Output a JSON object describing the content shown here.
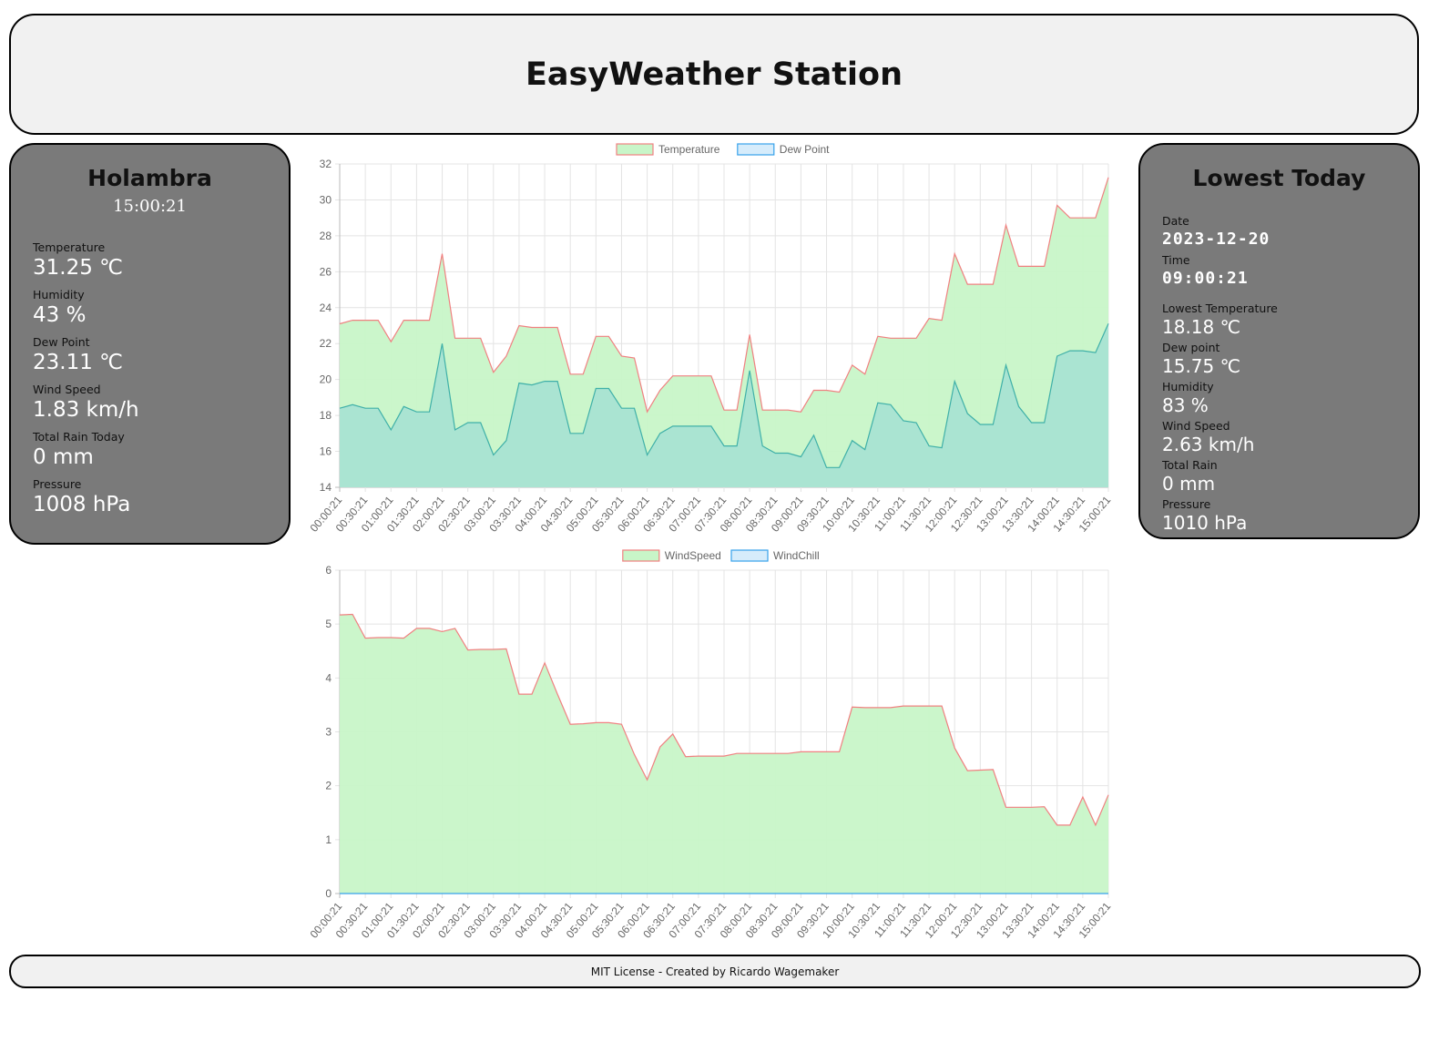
{
  "header": {
    "title": "EasyWeather Station"
  },
  "current": {
    "station": "Holambra",
    "time": "15:00:21",
    "items": [
      {
        "label": "Temperature",
        "value": "31.25 ℃"
      },
      {
        "label": "Humidity",
        "value": "43 %"
      },
      {
        "label": "Dew Point",
        "value": "23.11 ℃"
      },
      {
        "label": "Wind Speed",
        "value": "1.83 km/h"
      },
      {
        "label": "Total Rain Today",
        "value": "0 mm"
      },
      {
        "label": "Pressure",
        "value": "1008 hPa"
      }
    ]
  },
  "lowest": {
    "title": "Lowest Today",
    "date_label": "Date",
    "date": "2023-12-20",
    "time_label": "Time",
    "time": "09:00:21",
    "items": [
      {
        "label": "Lowest Temperature",
        "value": "18.18 ℃"
      },
      {
        "label": "Dew point",
        "value": "15.75 ℃"
      },
      {
        "label": "Humidity",
        "value": "83 %"
      },
      {
        "label": "Wind Speed",
        "value": "2.63 km/h"
      },
      {
        "label": "Total Rain",
        "value": "0 mm"
      },
      {
        "label": "Pressure",
        "value": "1010 hPa"
      }
    ]
  },
  "footer": {
    "text": "MIT License - Created by Ricardo Wagemaker"
  },
  "colors": {
    "temp_line": "#f08080",
    "temp_fill": "#c8f5c8",
    "dew_line": "#36a2eb",
    "dew_fill": "#d0e8f8",
    "legend_green_fill": "#c8f5c8",
    "legend_green_border": "#f08080",
    "legend_blue_fill": "#d6ecfb",
    "legend_blue_border": "#36a2eb"
  },
  "chart_data": [
    {
      "type": "area",
      "x": [
        "00:00:21",
        "00:15:21",
        "00:30:21",
        "00:45:21",
        "01:00:21",
        "01:15:21",
        "01:30:21",
        "01:45:21",
        "02:00:21",
        "02:15:21",
        "02:30:21",
        "02:45:21",
        "03:00:21",
        "03:15:21",
        "03:30:21",
        "03:45:21",
        "04:00:21",
        "04:15:21",
        "04:30:21",
        "04:45:21",
        "05:00:21",
        "05:15:21",
        "05:30:21",
        "05:45:21",
        "06:00:21",
        "06:15:21",
        "06:30:21",
        "06:45:21",
        "07:00:21",
        "07:15:21",
        "07:30:21",
        "07:45:21",
        "08:00:21",
        "08:15:21",
        "08:30:21",
        "08:45:21",
        "09:00:21",
        "09:15:21",
        "09:30:21",
        "09:45:21",
        "10:00:21",
        "10:15:21",
        "10:30:21",
        "10:45:21",
        "11:00:21",
        "11:15:21",
        "11:30:21",
        "11:45:21",
        "12:00:21",
        "12:15:21",
        "12:30:21",
        "12:45:21",
        "13:00:21",
        "13:15:21",
        "13:30:21",
        "13:45:21",
        "14:00:21",
        "14:15:21",
        "14:30:21",
        "14:45:21",
        "15:00:21"
      ],
      "tick_labels": [
        "00:00:21",
        "00:30:21",
        "01:00:21",
        "01:30:21",
        "02:00:21",
        "02:30:21",
        "03:00:21",
        "03:30:21",
        "04:00:21",
        "04:30:21",
        "05:00:21",
        "05:30:21",
        "06:00:21",
        "06:30:21",
        "07:00:21",
        "07:30:21",
        "08:00:21",
        "08:30:21",
        "09:00:21",
        "09:30:21",
        "10:00:21",
        "10:30:21",
        "11:00:21",
        "11:30:21",
        "12:00:21",
        "12:30:21",
        "13:00:21",
        "13:30:21",
        "14:00:21",
        "14:30:21",
        "15:00:21"
      ],
      "series": [
        {
          "name": "Temperature",
          "values": [
            23.1,
            23.3,
            23.3,
            23.3,
            22.1,
            23.3,
            23.3,
            23.3,
            27.0,
            22.3,
            22.3,
            22.3,
            20.4,
            21.3,
            23.0,
            22.9,
            22.9,
            22.9,
            20.3,
            20.3,
            22.4,
            22.4,
            21.3,
            21.2,
            18.2,
            19.4,
            20.2,
            20.2,
            20.2,
            20.2,
            18.3,
            18.3,
            22.5,
            18.3,
            18.3,
            18.3,
            18.2,
            19.4,
            19.4,
            19.3,
            20.8,
            20.3,
            22.4,
            22.3,
            22.3,
            22.3,
            23.4,
            23.3,
            27.0,
            25.3,
            25.3,
            25.3,
            28.6,
            26.3,
            26.3,
            26.3,
            29.7,
            29.0,
            29.0,
            29.0,
            31.25
          ]
        },
        {
          "name": "Dew Point",
          "values": [
            18.4,
            18.6,
            18.4,
            18.4,
            17.2,
            18.5,
            18.2,
            18.2,
            22.0,
            17.2,
            17.6,
            17.6,
            15.8,
            16.6,
            19.8,
            19.7,
            19.9,
            19.9,
            17.0,
            17.0,
            19.5,
            19.5,
            18.4,
            18.4,
            15.8,
            17.0,
            17.4,
            17.4,
            17.4,
            17.4,
            16.3,
            16.3,
            20.5,
            16.3,
            15.9,
            15.9,
            15.7,
            16.9,
            15.1,
            15.1,
            16.6,
            16.1,
            18.7,
            18.6,
            17.7,
            17.6,
            16.3,
            16.2,
            19.9,
            18.1,
            17.5,
            17.5,
            20.8,
            18.5,
            17.6,
            17.6,
            21.3,
            21.6,
            21.6,
            21.5,
            23.11
          ]
        }
      ],
      "ylim": [
        14,
        32
      ],
      "yticks": [
        14,
        16,
        18,
        20,
        22,
        24,
        26,
        28,
        30,
        32
      ],
      "legend": "top"
    },
    {
      "type": "area",
      "x": [
        "00:00:21",
        "00:15:21",
        "00:30:21",
        "00:45:21",
        "01:00:21",
        "01:15:21",
        "01:30:21",
        "01:45:21",
        "02:00:21",
        "02:15:21",
        "02:30:21",
        "02:45:21",
        "03:00:21",
        "03:15:21",
        "03:30:21",
        "03:45:21",
        "04:00:21",
        "04:15:21",
        "04:30:21",
        "04:45:21",
        "05:00:21",
        "05:15:21",
        "05:30:21",
        "05:45:21",
        "06:00:21",
        "06:15:21",
        "06:30:21",
        "06:45:21",
        "07:00:21",
        "07:15:21",
        "07:30:21",
        "07:45:21",
        "08:00:21",
        "08:15:21",
        "08:30:21",
        "08:45:21",
        "09:00:21",
        "09:15:21",
        "09:30:21",
        "09:45:21",
        "10:00:21",
        "10:15:21",
        "10:30:21",
        "10:45:21",
        "11:00:21",
        "11:15:21",
        "11:30:21",
        "11:45:21",
        "12:00:21",
        "12:15:21",
        "12:30:21",
        "12:45:21",
        "13:00:21",
        "13:15:21",
        "13:30:21",
        "13:45:21",
        "14:00:21",
        "14:15:21",
        "14:30:21",
        "14:45:21",
        "15:00:21"
      ],
      "tick_labels": [
        "00:00:21",
        "00:30:21",
        "01:00:21",
        "01:30:21",
        "02:00:21",
        "02:30:21",
        "03:00:21",
        "03:30:21",
        "04:00:21",
        "04:30:21",
        "05:00:21",
        "05:30:21",
        "06:00:21",
        "06:30:21",
        "07:00:21",
        "07:30:21",
        "08:00:21",
        "08:30:21",
        "09:00:21",
        "09:30:21",
        "10:00:21",
        "10:30:21",
        "11:00:21",
        "11:30:21",
        "12:00:21",
        "12:30:21",
        "13:00:21",
        "13:30:21",
        "14:00:21",
        "14:30:21",
        "15:00:21"
      ],
      "series": [
        {
          "name": "WindSpeed",
          "values": [
            5.17,
            5.18,
            4.74,
            4.75,
            4.75,
            4.74,
            4.92,
            4.92,
            4.86,
            4.92,
            4.52,
            4.53,
            4.53,
            4.54,
            3.7,
            3.7,
            4.28,
            3.7,
            3.14,
            3.15,
            3.17,
            3.17,
            3.14,
            2.58,
            2.11,
            2.72,
            2.96,
            2.54,
            2.55,
            2.55,
            2.55,
            2.6,
            2.6,
            2.6,
            2.6,
            2.6,
            2.63,
            2.63,
            2.63,
            2.63,
            3.46,
            3.45,
            3.45,
            3.45,
            3.48,
            3.48,
            3.48,
            3.48,
            2.7,
            2.28,
            2.29,
            2.3,
            1.6,
            1.6,
            1.6,
            1.61,
            1.27,
            1.27,
            1.79,
            1.27,
            1.83
          ]
        },
        {
          "name": "WindChill",
          "values": [
            0,
            0,
            0,
            0,
            0,
            0,
            0,
            0,
            0,
            0,
            0,
            0,
            0,
            0,
            0,
            0,
            0,
            0,
            0,
            0,
            0,
            0,
            0,
            0,
            0,
            0,
            0,
            0,
            0,
            0,
            0,
            0,
            0,
            0,
            0,
            0,
            0,
            0,
            0,
            0,
            0,
            0,
            0,
            0,
            0,
            0,
            0,
            0,
            0,
            0,
            0,
            0,
            0,
            0,
            0,
            0,
            0,
            0,
            0,
            0,
            0
          ]
        }
      ],
      "ylim": [
        0,
        6
      ],
      "yticks": [
        0,
        1,
        2,
        3,
        4,
        5,
        6
      ],
      "legend": "top"
    }
  ]
}
